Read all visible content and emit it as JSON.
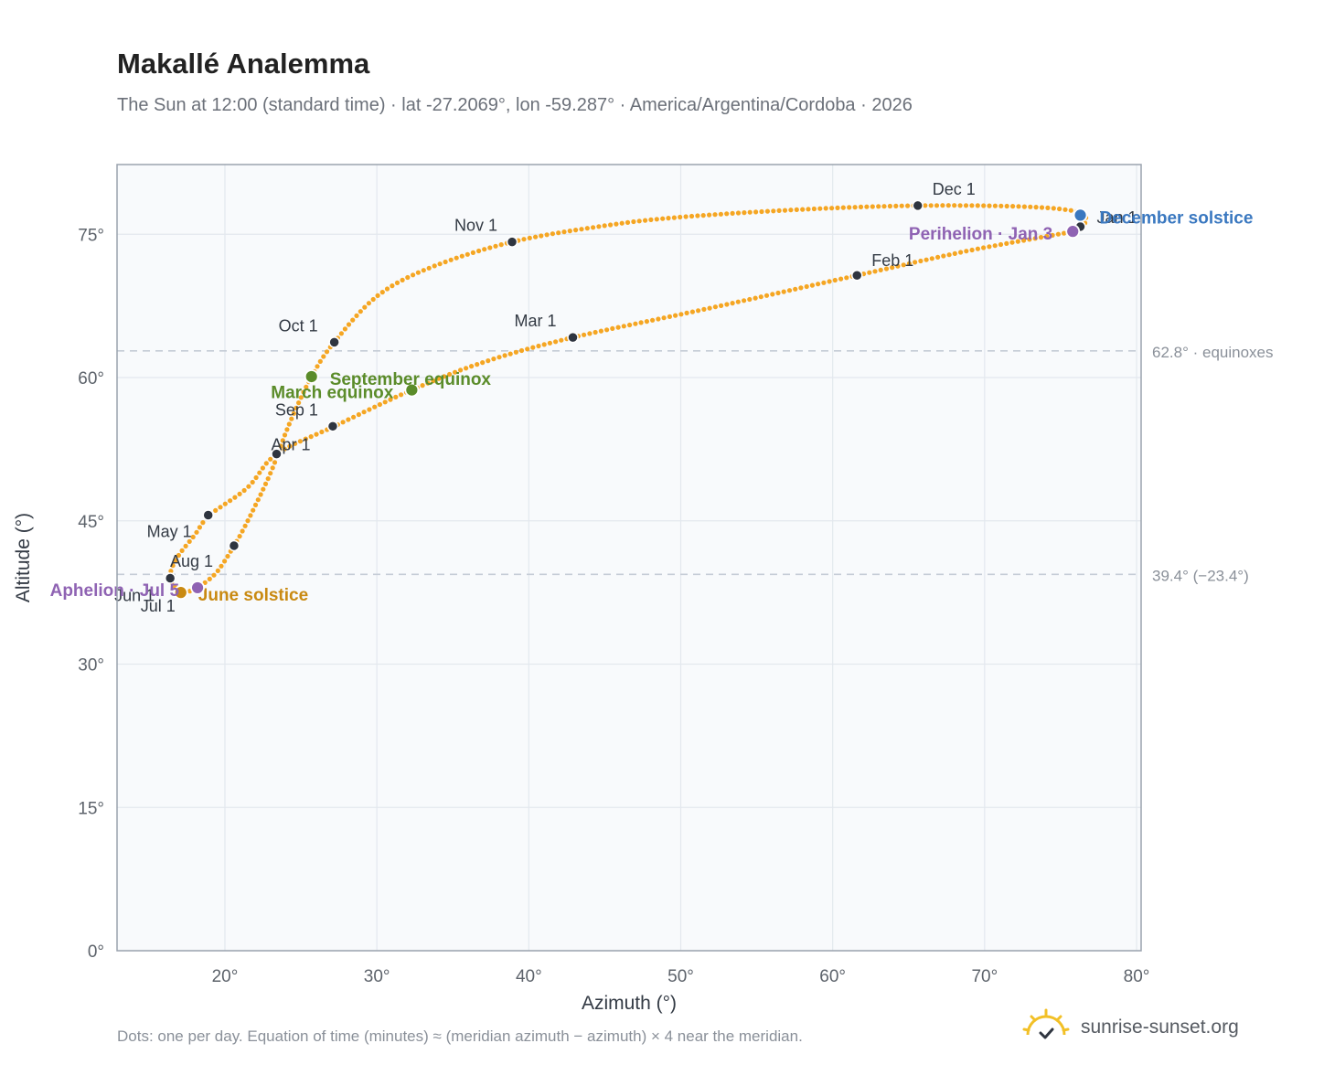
{
  "header": {
    "title": "Makallé Analemma",
    "subtitle": "The Sun at 12:00 (standard time) · lat -27.2069°, lon -59.287° · America/Argentina/Cordoba · 2026"
  },
  "footer": {
    "note": "Dots: one per day. Equation of time (minutes) ≈ (meridian azimuth − azimuth) × 4 near the meridian.",
    "brand": "sunrise-sunset.org"
  },
  "icons": {
    "brand_logo": "sun-logo-icon"
  },
  "colors": {
    "path": "#f5a623",
    "month_marker": "#2f3540",
    "equinox": "#5b8c2a",
    "june_solstice": "#c98a12",
    "december_solstice": "#3a78c0",
    "apsis": "#8f63b3",
    "reference_line": "#c5ccd6",
    "plot_background": "#f8fafc",
    "grid": "#e3e8ee",
    "frame": "#9aa3ae"
  },
  "chart_data": {
    "type": "scatter",
    "xlabel": "Azimuth (°)",
    "ylabel": "Altitude (°)",
    "xlim": [
      12.9,
      80.3
    ],
    "ylim": [
      0,
      82.3
    ],
    "xticks": [
      20,
      30,
      40,
      50,
      60,
      70,
      80
    ],
    "yticks": [
      0,
      15,
      30,
      45,
      60,
      75
    ],
    "xtick_labels": [
      "20°",
      "30°",
      "40°",
      "50°",
      "60°",
      "70°",
      "80°"
    ],
    "ytick_labels": [
      "0°",
      "15°",
      "30°",
      "45°",
      "60°",
      "75°"
    ],
    "grid": true,
    "path_anchors": [
      [
        76.3,
        75.8
      ],
      [
        76.7,
        76.5
      ],
      [
        76.0,
        77.4
      ],
      [
        72.5,
        77.9
      ],
      [
        65.6,
        78.0
      ],
      [
        58.0,
        77.6
      ],
      [
        50.0,
        76.8
      ],
      [
        45.0,
        75.9
      ],
      [
        38.9,
        74.2
      ],
      [
        33.5,
        71.5
      ],
      [
        30.0,
        68.5
      ],
      [
        27.2,
        63.7
      ],
      [
        25.7,
        60.1
      ],
      [
        24.2,
        55.0
      ],
      [
        23.0,
        50.0
      ],
      [
        21.5,
        45.0
      ],
      [
        20.6,
        42.4
      ],
      [
        19.5,
        39.7
      ],
      [
        18.5,
        38.3
      ],
      [
        18.2,
        38.0
      ],
      [
        17.6,
        37.6
      ],
      [
        17.1,
        37.5
      ],
      [
        16.4,
        39.0
      ],
      [
        16.8,
        41.0
      ],
      [
        18.0,
        43.5
      ],
      [
        19.0,
        45.6
      ],
      [
        21.5,
        48.5
      ],
      [
        23.4,
        52.0
      ],
      [
        27.2,
        54.9
      ],
      [
        32.3,
        58.7
      ],
      [
        37.0,
        61.6
      ],
      [
        42.9,
        64.2
      ],
      [
        52.0,
        67.3
      ],
      [
        61.6,
        70.7
      ],
      [
        69.0,
        73.3
      ],
      [
        75.8,
        75.3
      ],
      [
        76.3,
        75.8
      ]
    ],
    "reference_lines": [
      {
        "y": 62.8,
        "label": "62.8° · equinoxes"
      },
      {
        "y": 39.4,
        "label": "39.4° (−23.4°)"
      }
    ],
    "month_markers": [
      {
        "label": "Jan 1",
        "az": 76.3,
        "alt": 75.8
      },
      {
        "label": "Feb 1",
        "az": 61.6,
        "alt": 70.7
      },
      {
        "label": "Mar 1",
        "az": 42.9,
        "alt": 64.2
      },
      {
        "label": "Apr 1",
        "az": 23.4,
        "alt": 52.0
      },
      {
        "label": "May 1",
        "az": 18.9,
        "alt": 45.6
      },
      {
        "label": "Jun 1",
        "az": 16.4,
        "alt": 39.0
      },
      {
        "label": "Jul 1",
        "az": 17.1,
        "alt": 37.5
      },
      {
        "label": "Aug 1",
        "az": 20.6,
        "alt": 42.4
      },
      {
        "label": "Sep 1",
        "az": 27.1,
        "alt": 54.9
      },
      {
        "label": "Oct 1",
        "az": 27.2,
        "alt": 63.7
      },
      {
        "label": "Nov 1",
        "az": 38.9,
        "alt": 74.2
      },
      {
        "label": "Dec 1",
        "az": 65.6,
        "alt": 78.0
      }
    ],
    "events": [
      {
        "label": "March equinox",
        "az": 32.3,
        "alt": 58.7,
        "color_key": "equinox"
      },
      {
        "label": "September equinox",
        "az": 25.7,
        "alt": 60.1,
        "color_key": "equinox"
      },
      {
        "label": "June solstice",
        "az": 17.1,
        "alt": 37.5,
        "color_key": "june_solstice"
      },
      {
        "label": "December solstice",
        "az": 76.3,
        "alt": 77.0,
        "color_key": "december_solstice"
      },
      {
        "label": "Aphelion · Jul 5",
        "az": 18.2,
        "alt": 38.0,
        "color_key": "apsis"
      },
      {
        "label": "Perihelion · Jan 3",
        "az": 75.8,
        "alt": 75.3,
        "color_key": "apsis"
      }
    ]
  }
}
